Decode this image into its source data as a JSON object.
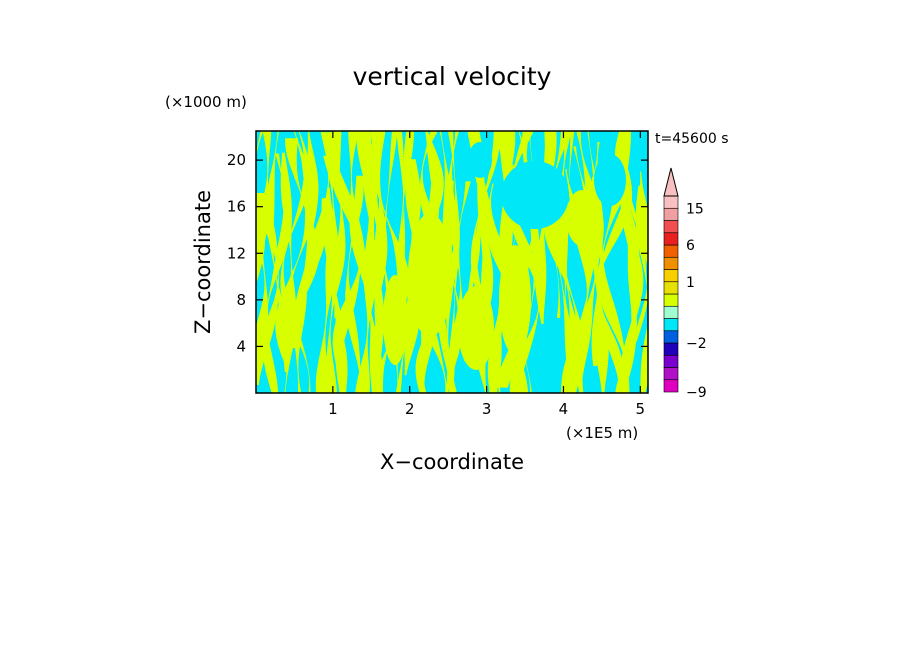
{
  "chart_data": {
    "type": "heatmap",
    "title": "vertical velocity",
    "xlabel": "X−coordinate",
    "ylabel": "Z−coordinate",
    "x_unit": "(×1E5 m)",
    "y_unit": "(×1000 m)",
    "time_label": "t=45600 s",
    "xlim": [
      0,
      5.1
    ],
    "ylim": [
      0,
      22.5
    ],
    "x_ticks": [
      1,
      2,
      3,
      4,
      5
    ],
    "x_tick_labels": [
      "1",
      "2",
      "3",
      "4",
      "5"
    ],
    "y_ticks": [
      4,
      8,
      12,
      16,
      20
    ],
    "y_tick_labels": [
      "4",
      "8",
      "12",
      "16",
      "20"
    ],
    "field_colors": {
      "positive": "#d8ff00",
      "negative": "#00e8f8"
    },
    "colorbar": {
      "levels": [
        -9,
        -7,
        -5,
        -3,
        -2,
        -1,
        -0.5,
        0,
        0.5,
        1,
        2,
        4,
        6,
        9,
        12,
        15,
        21
      ],
      "colors": [
        "#e000c0",
        "#b010c8",
        "#7a00d0",
        "#2000b8",
        "#0060e0",
        "#00e8f8",
        "#a0ffd0",
        "#d8ff00",
        "#e8e000",
        "#f8d000",
        "#f09000",
        "#f06000",
        "#e82020",
        "#f05050",
        "#f0a0a0",
        "#f8c0c0"
      ],
      "labeled_values": [
        -9,
        -2,
        1,
        6,
        15
      ],
      "labels": [
        "−9",
        "−2",
        "1",
        "6",
        "15"
      ],
      "extend": "max"
    }
  }
}
